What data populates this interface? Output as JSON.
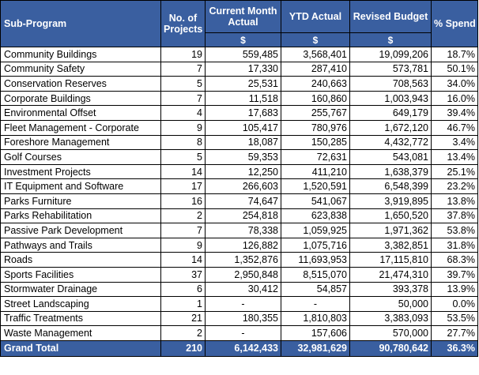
{
  "headers": {
    "sub_program": "Sub-Program",
    "projects": "No. of Projects",
    "current_month": "Current Month Actual",
    "ytd": "YTD Actual",
    "revised": "Revised Budget",
    "spend": "% Spend"
  },
  "units": {
    "current_month": "$",
    "ytd": "$",
    "revised": "$"
  },
  "rows": [
    {
      "name": "Community Buildings",
      "projects": "19",
      "current": "559,485",
      "ytd": "3,568,401",
      "budget": "19,099,206",
      "spend": "18.7%"
    },
    {
      "name": "Community Safety",
      "projects": "7",
      "current": "17,330",
      "ytd": "287,410",
      "budget": "573,781",
      "spend": "50.1%"
    },
    {
      "name": "Conservation Reserves",
      "projects": "5",
      "current": "25,531",
      "ytd": "240,663",
      "budget": "708,563",
      "spend": "34.0%"
    },
    {
      "name": "Corporate Buildings",
      "projects": "7",
      "current": "11,518",
      "ytd": "160,860",
      "budget": "1,003,943",
      "spend": "16.0%"
    },
    {
      "name": "Environmental Offset",
      "projects": "4",
      "current": "17,683",
      "ytd": "255,767",
      "budget": "649,179",
      "spend": "39.4%"
    },
    {
      "name": "Fleet Management - Corporate",
      "projects": "9",
      "current": "105,417",
      "ytd": "780,976",
      "budget": "1,672,120",
      "spend": "46.7%"
    },
    {
      "name": "Foreshore Management",
      "projects": "8",
      "current": "18,087",
      "ytd": "150,285",
      "budget": "4,432,772",
      "spend": "3.4%"
    },
    {
      "name": "Golf Courses",
      "projects": "5",
      "current": "59,353",
      "ytd": "72,631",
      "budget": "543,081",
      "spend": "13.4%"
    },
    {
      "name": "Investment Projects",
      "projects": "14",
      "current": "12,250",
      "ytd": "411,210",
      "budget": "1,638,379",
      "spend": "25.1%"
    },
    {
      "name": "IT Equipment and Software",
      "projects": "17",
      "current": "266,603",
      "ytd": "1,520,591",
      "budget": "6,548,399",
      "spend": "23.2%"
    },
    {
      "name": "Parks Furniture",
      "projects": "16",
      "current": "74,647",
      "ytd": "541,067",
      "budget": "3,919,895",
      "spend": "13.8%"
    },
    {
      "name": "Parks Rehabilitation",
      "projects": "2",
      "current": "254,818",
      "ytd": "623,838",
      "budget": "1,650,520",
      "spend": "37.8%"
    },
    {
      "name": "Passive Park Development",
      "projects": "7",
      "current": "78,338",
      "ytd": "1,059,925",
      "budget": "1,971,362",
      "spend": "53.8%"
    },
    {
      "name": "Pathways and Trails",
      "projects": "9",
      "current": "126,882",
      "ytd": "1,075,716",
      "budget": "3,382,851",
      "spend": "31.8%"
    },
    {
      "name": "Roads",
      "projects": "14",
      "current": "1,352,876",
      "ytd": "11,693,953",
      "budget": "17,115,810",
      "spend": "68.3%"
    },
    {
      "name": "Sports Facilities",
      "projects": "37",
      "current": "2,950,848",
      "ytd": "8,515,070",
      "budget": "21,474,310",
      "spend": "39.7%"
    },
    {
      "name": "Stormwater Drainage",
      "projects": "6",
      "current": "30,412",
      "ytd": "54,857",
      "budget": "393,378",
      "spend": "13.9%"
    },
    {
      "name": "Street Landscaping",
      "projects": "1",
      "current": "-",
      "ytd": "-",
      "budget": "50,000",
      "spend": "0.0%"
    },
    {
      "name": "Traffic Treatments",
      "projects": "21",
      "current": "180,355",
      "ytd": "1,810,803",
      "budget": "3,383,093",
      "spend": "53.5%"
    },
    {
      "name": "Waste Management",
      "projects": "2",
      "current": "-",
      "ytd": "157,606",
      "budget": "570,000",
      "spend": "27.7%"
    }
  ],
  "total": {
    "name": "Grand Total",
    "projects": "210",
    "current": "6,142,433",
    "ytd": "32,981,629",
    "budget": "90,780,642",
    "spend": "36.3%"
  }
}
